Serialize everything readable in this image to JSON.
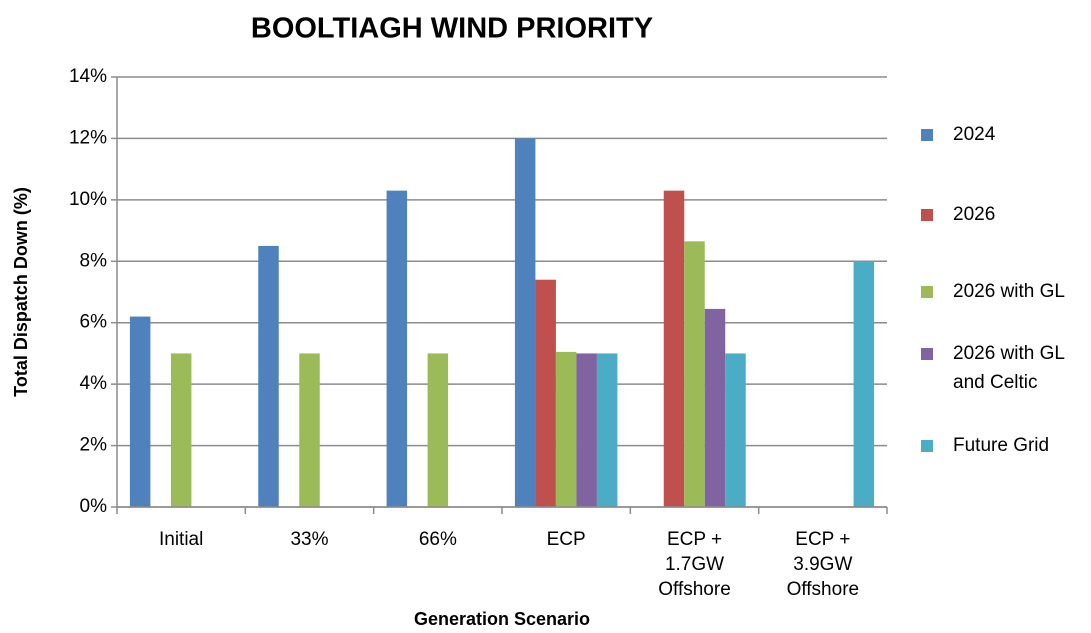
{
  "chart_data": {
    "type": "bar",
    "title": "BOOLTIAGH WIND PRIORITY",
    "x_label": "Generation Scenario",
    "y_label": "Total Dispatch Down (%)",
    "categories": [
      "Initial",
      "33%",
      "66%",
      "ECP",
      "ECP +\n1.7GW\nOffshore",
      "ECP +\n3.9GW\nOffshore"
    ],
    "series": [
      {
        "name": "2024",
        "color": "#4f81bd",
        "values": [
          6.2,
          8.5,
          10.3,
          12.0,
          null,
          null
        ]
      },
      {
        "name": "2026",
        "color": "#c0504d",
        "values": [
          null,
          null,
          null,
          7.4,
          10.3,
          null
        ]
      },
      {
        "name": "2026 with GL",
        "color": "#9bbb59",
        "values": [
          5.0,
          5.0,
          5.0,
          5.05,
          8.65,
          null
        ]
      },
      {
        "name": "2026 with GL\nand Celtic",
        "color": "#8064a2",
        "values": [
          null,
          null,
          null,
          5.0,
          6.45,
          null
        ]
      },
      {
        "name": "Future Grid",
        "color": "#4bacc6",
        "values": [
          null,
          null,
          null,
          5.0,
          5.0,
          8.0
        ]
      }
    ],
    "ylim": [
      0,
      14
    ],
    "yticks": [
      {
        "value": 0,
        "label": "0%"
      },
      {
        "value": 2,
        "label": "2%"
      },
      {
        "value": 4,
        "label": "4%"
      },
      {
        "value": 6,
        "label": "6%"
      },
      {
        "value": 8,
        "label": "8%"
      },
      {
        "value": 10,
        "label": "10%"
      },
      {
        "value": 12,
        "label": "12%"
      },
      {
        "value": 14,
        "label": "14%"
      }
    ],
    "grid": true,
    "legend": "right"
  }
}
